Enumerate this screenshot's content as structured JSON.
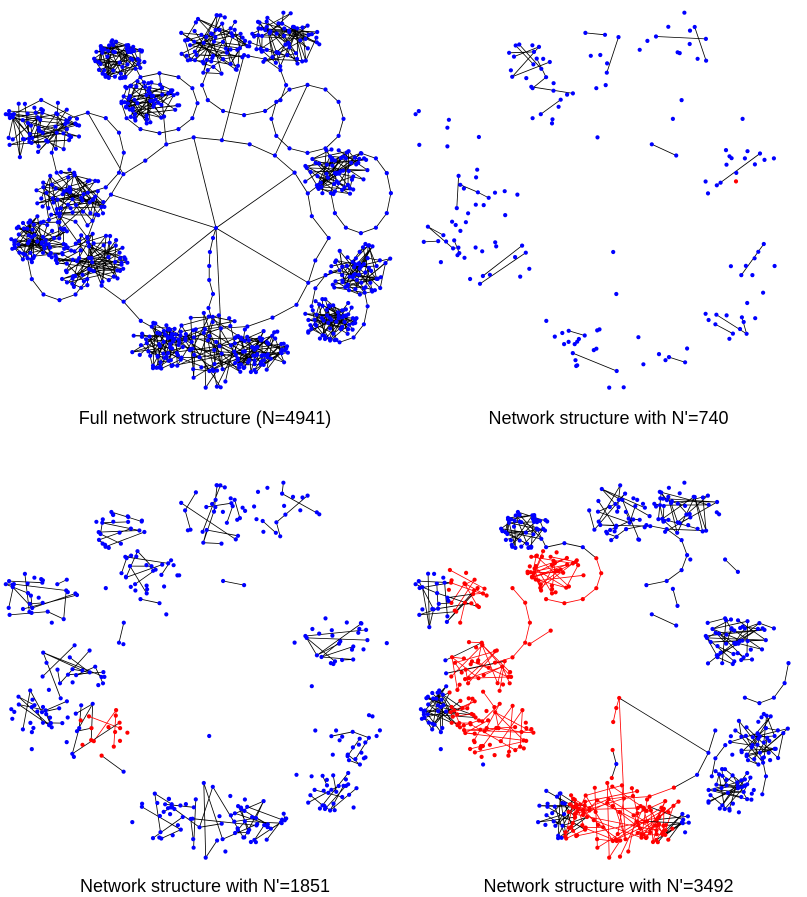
{
  "colors": {
    "node": "#0000ff",
    "highlight": "#ff0000",
    "edge": "#000000"
  },
  "panels": [
    {
      "id": "full",
      "caption": "Full network structure (N=4941)",
      "highlight": "none"
    },
    {
      "id": "n740",
      "caption": "Network structure with N'=740",
      "highlight": "tiny"
    },
    {
      "id": "n1851",
      "caption": "Network structure with N'=1851",
      "highlight": "small"
    },
    {
      "id": "n3492",
      "caption": "Network structure with N'=3492",
      "highlight": "large"
    }
  ]
}
